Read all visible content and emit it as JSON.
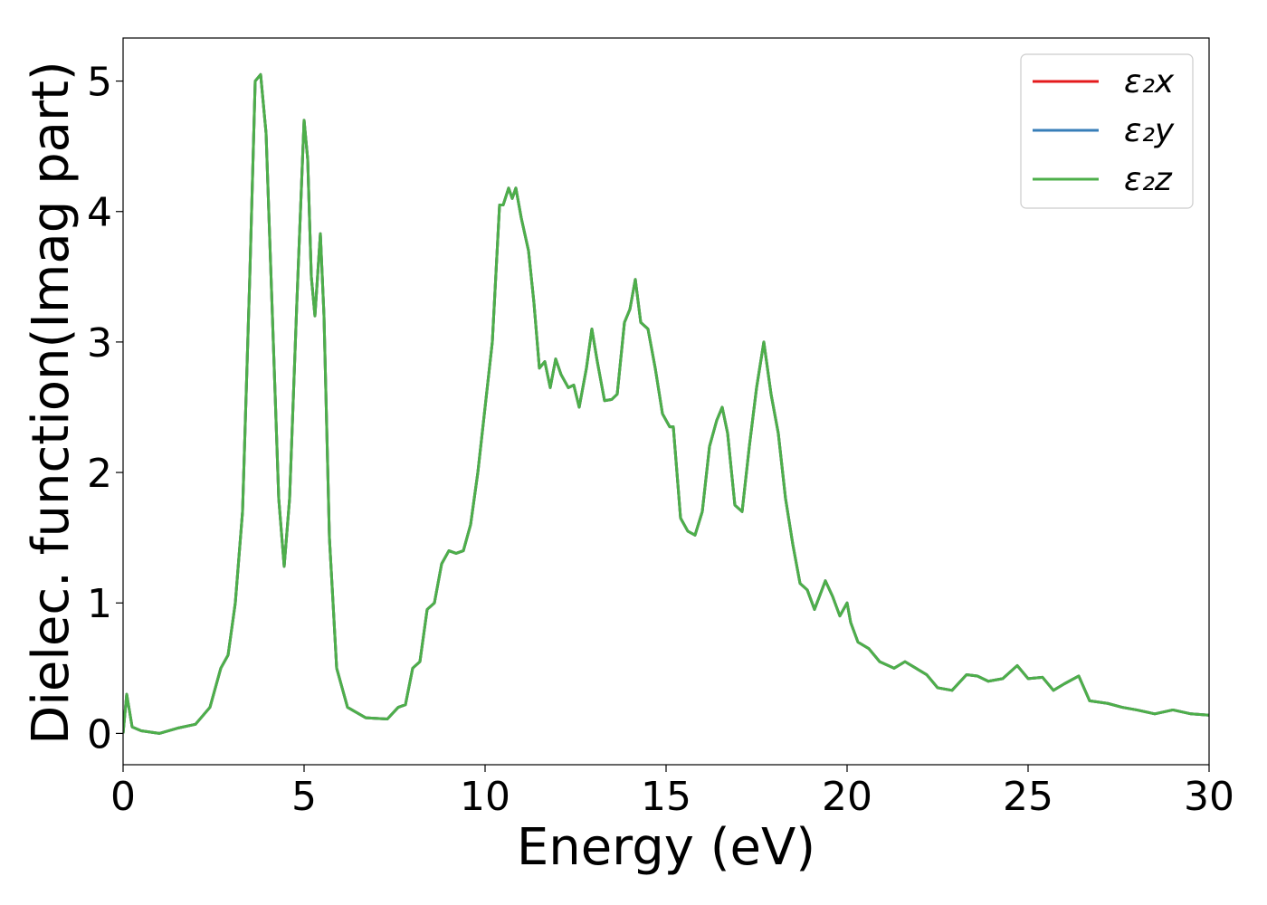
{
  "chart_data": {
    "type": "line",
    "xlabel": "Energy (eV)",
    "ylabel": "Dielec. function(Imag part)",
    "x": [
      0,
      0.1,
      0.25,
      0.5,
      1.0,
      1.5,
      2.0,
      2.4,
      2.7,
      2.9,
      3.1,
      3.3,
      3.5,
      3.65,
      3.8,
      3.95,
      4.1,
      4.3,
      4.45,
      4.6,
      4.8,
      5.0,
      5.1,
      5.2,
      5.3,
      5.45,
      5.55,
      5.7,
      5.9,
      6.2,
      6.7,
      7.3,
      7.6,
      7.8,
      8.0,
      8.2,
      8.4,
      8.6,
      8.8,
      9.0,
      9.2,
      9.4,
      9.6,
      9.8,
      10.0,
      10.2,
      10.4,
      10.5,
      10.65,
      10.75,
      10.85,
      11.0,
      11.2,
      11.35,
      11.5,
      11.65,
      11.8,
      11.95,
      12.1,
      12.3,
      12.45,
      12.6,
      12.8,
      12.95,
      13.1,
      13.3,
      13.5,
      13.65,
      13.85,
      14.0,
      14.15,
      14.3,
      14.5,
      14.7,
      14.9,
      15.1,
      15.2,
      15.4,
      15.6,
      15.8,
      16.0,
      16.2,
      16.4,
      16.55,
      16.7,
      16.9,
      17.1,
      17.3,
      17.5,
      17.7,
      17.9,
      18.1,
      18.3,
      18.5,
      18.7,
      18.9,
      19.1,
      19.4,
      19.6,
      19.8,
      20.0,
      20.1,
      20.3,
      20.6,
      20.9,
      21.3,
      21.6,
      21.9,
      22.2,
      22.5,
      22.9,
      23.3,
      23.6,
      23.9,
      24.3,
      24.7,
      25.0,
      25.4,
      25.7,
      26.0,
      26.4,
      26.7,
      27.2,
      27.6,
      28.0,
      28.5,
      29.0,
      29.5,
      30.0
    ],
    "series": [
      {
        "name": "ε₂x",
        "color": "#e41a1c",
        "values": [
          0.0,
          0.3,
          0.05,
          0.02,
          0.0,
          0.04,
          0.07,
          0.2,
          0.5,
          0.6,
          1.0,
          1.7,
          3.5,
          5.0,
          5.05,
          4.6,
          3.4,
          1.8,
          1.28,
          1.8,
          3.3,
          4.7,
          4.4,
          3.5,
          3.2,
          3.83,
          3.2,
          1.5,
          0.5,
          0.2,
          0.12,
          0.11,
          0.2,
          0.22,
          0.5,
          0.55,
          0.95,
          1.0,
          1.3,
          1.4,
          1.38,
          1.4,
          1.6,
          2.0,
          2.5,
          3.0,
          4.05,
          4.05,
          4.18,
          4.1,
          4.18,
          3.95,
          3.7,
          3.3,
          2.8,
          2.85,
          2.65,
          2.87,
          2.75,
          2.65,
          2.67,
          2.5,
          2.8,
          3.1,
          2.85,
          2.55,
          2.56,
          2.6,
          3.15,
          3.25,
          3.48,
          3.15,
          3.1,
          2.8,
          2.45,
          2.35,
          2.35,
          1.65,
          1.55,
          1.52,
          1.7,
          2.2,
          2.4,
          2.5,
          2.3,
          1.75,
          1.7,
          2.2,
          2.65,
          3.0,
          2.6,
          2.3,
          1.8,
          1.45,
          1.15,
          1.1,
          0.95,
          1.17,
          1.05,
          0.9,
          1.0,
          0.85,
          0.7,
          0.65,
          0.55,
          0.5,
          0.55,
          0.5,
          0.45,
          0.35,
          0.33,
          0.45,
          0.44,
          0.4,
          0.42,
          0.52,
          0.42,
          0.43,
          0.33,
          0.38,
          0.44,
          0.25,
          0.23,
          0.2,
          0.18,
          0.15,
          0.18,
          0.15,
          0.14
        ]
      },
      {
        "name": "ε₂y",
        "color": "#377eb8",
        "values": [
          0.0,
          0.3,
          0.05,
          0.02,
          0.0,
          0.04,
          0.07,
          0.2,
          0.5,
          0.6,
          1.0,
          1.7,
          3.5,
          5.0,
          5.05,
          4.6,
          3.4,
          1.8,
          1.28,
          1.8,
          3.3,
          4.7,
          4.4,
          3.5,
          3.2,
          3.83,
          3.2,
          1.5,
          0.5,
          0.2,
          0.12,
          0.11,
          0.2,
          0.22,
          0.5,
          0.55,
          0.95,
          1.0,
          1.3,
          1.4,
          1.38,
          1.4,
          1.6,
          2.0,
          2.5,
          3.0,
          4.05,
          4.05,
          4.18,
          4.1,
          4.18,
          3.95,
          3.7,
          3.3,
          2.8,
          2.85,
          2.65,
          2.87,
          2.75,
          2.65,
          2.67,
          2.5,
          2.8,
          3.1,
          2.85,
          2.55,
          2.56,
          2.6,
          3.15,
          3.25,
          3.48,
          3.15,
          3.1,
          2.8,
          2.45,
          2.35,
          2.35,
          1.65,
          1.55,
          1.52,
          1.7,
          2.2,
          2.4,
          2.5,
          2.3,
          1.75,
          1.7,
          2.2,
          2.65,
          3.0,
          2.6,
          2.3,
          1.8,
          1.45,
          1.15,
          1.1,
          0.95,
          1.17,
          1.05,
          0.9,
          1.0,
          0.85,
          0.7,
          0.65,
          0.55,
          0.5,
          0.55,
          0.5,
          0.45,
          0.35,
          0.33,
          0.45,
          0.44,
          0.4,
          0.42,
          0.52,
          0.42,
          0.43,
          0.33,
          0.38,
          0.44,
          0.25,
          0.23,
          0.2,
          0.18,
          0.15,
          0.18,
          0.15,
          0.14
        ]
      },
      {
        "name": "ε₂z",
        "color": "#4daf4a",
        "values": [
          0.0,
          0.3,
          0.05,
          0.02,
          0.0,
          0.04,
          0.07,
          0.2,
          0.5,
          0.6,
          1.0,
          1.7,
          3.5,
          5.0,
          5.05,
          4.6,
          3.4,
          1.8,
          1.28,
          1.8,
          3.3,
          4.7,
          4.4,
          3.5,
          3.2,
          3.83,
          3.2,
          1.5,
          0.5,
          0.2,
          0.12,
          0.11,
          0.2,
          0.22,
          0.5,
          0.55,
          0.95,
          1.0,
          1.3,
          1.4,
          1.38,
          1.4,
          1.6,
          2.0,
          2.5,
          3.0,
          4.05,
          4.05,
          4.18,
          4.1,
          4.18,
          3.95,
          3.7,
          3.3,
          2.8,
          2.85,
          2.65,
          2.87,
          2.75,
          2.65,
          2.67,
          2.5,
          2.8,
          3.1,
          2.85,
          2.55,
          2.56,
          2.6,
          3.15,
          3.25,
          3.48,
          3.15,
          3.1,
          2.8,
          2.45,
          2.35,
          2.35,
          1.65,
          1.55,
          1.52,
          1.7,
          2.2,
          2.4,
          2.5,
          2.3,
          1.75,
          1.7,
          2.2,
          2.65,
          3.0,
          2.6,
          2.3,
          1.8,
          1.45,
          1.15,
          1.1,
          0.95,
          1.17,
          1.05,
          0.9,
          1.0,
          0.85,
          0.7,
          0.65,
          0.55,
          0.5,
          0.55,
          0.5,
          0.45,
          0.35,
          0.33,
          0.45,
          0.44,
          0.4,
          0.42,
          0.52,
          0.42,
          0.43,
          0.33,
          0.38,
          0.44,
          0.25,
          0.23,
          0.2,
          0.18,
          0.15,
          0.18,
          0.15,
          0.14
        ]
      }
    ],
    "xlim": [
      0,
      30
    ],
    "xticks": [
      0,
      5,
      10,
      15,
      20,
      25,
      30
    ],
    "ylim": [
      -0.24,
      5.33
    ],
    "yticks": [
      0,
      1,
      2,
      3,
      4,
      5
    ],
    "grid": false,
    "legend": "upper right"
  }
}
